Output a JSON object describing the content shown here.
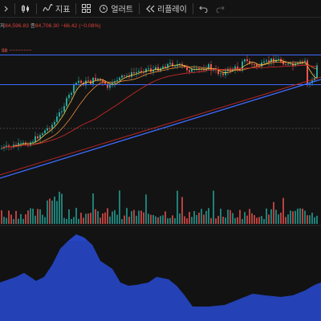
{
  "toolbar": {
    "indicator_label": "지표",
    "layout_label": "얼러트",
    "replay_label": "리플레이",
    "icons": [
      "chevron-icon",
      "candle-type-icon",
      "indicator-icon",
      "layout-grid-icon",
      "alert-clock-icon",
      "replay-icon",
      "undo-icon",
      "redo-icon"
    ]
  },
  "legend": {
    "low_key": "저",
    "low_value": "84,596.83",
    "close_key": "종",
    "close_value": "84,706.30",
    "change_value": "−66.42",
    "change_pct": "(−0.08%)"
  },
  "price_tag": "98",
  "colors": {
    "background": "#131313",
    "up": "#26a69a",
    "down": "#ef5350",
    "ma_fast": "#f5c542",
    "ma_mid": "#e8893a",
    "ma_slow": "#c62828",
    "trendline": "#3d6bff",
    "volume_indicator": "#2a50e6"
  }
}
